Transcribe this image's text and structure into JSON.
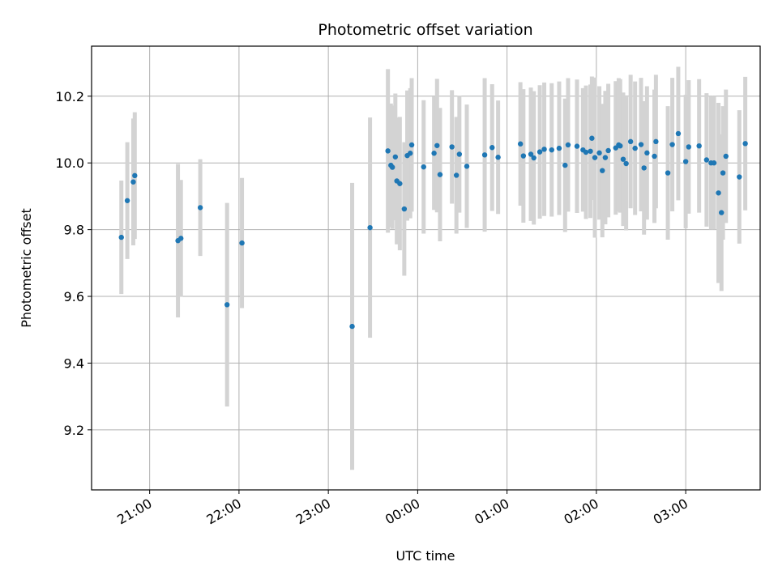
{
  "chart_data": {
    "type": "scatter",
    "title": "Photometric offset variation",
    "xlabel": "UTC time",
    "ylabel": "Photometric offset",
    "grid": true,
    "x_is_time": true,
    "xlim": [
      "20:21",
      "03:50"
    ],
    "ylim": [
      9.02,
      10.35
    ],
    "xticks": [
      "21:00",
      "22:00",
      "23:00",
      "00:00",
      "01:00",
      "02:00",
      "03:00"
    ],
    "yticks": [
      "9.2",
      "9.4",
      "9.6",
      "9.8",
      "10.0",
      "10.2"
    ],
    "point_color": "#1f77b4",
    "errorbar_color": "#d3d3d3",
    "series": [
      {
        "x": [
          "20:41",
          "20:45",
          "20:49",
          "20:50",
          "21:19",
          "21:21",
          "21:34",
          "21:52",
          "22:02",
          "23:16",
          "23:28",
          "23:40",
          "23:42",
          "23:43",
          "23:45",
          "23:46",
          "23:48",
          "23:51",
          "23:53",
          "23:55",
          "23:56",
          "24:04",
          "24:11",
          "24:13",
          "24:15",
          "24:23",
          "24:26",
          "24:28",
          "24:33",
          "24:45",
          "24:50",
          "24:54",
          "25:09",
          "25:11",
          "25:16",
          "25:18",
          "25:22",
          "25:25",
          "25:30",
          "25:35",
          "25:39",
          "25:41",
          "25:47",
          "25:51",
          "25:53",
          "25:56",
          "25:57",
          "25:59",
          "26:02",
          "26:04",
          "26:06",
          "26:08",
          "26:13",
          "26:15",
          "26:16",
          "26:18",
          "26:20",
          "26:23",
          "26:26",
          "26:30",
          "26:32",
          "26:34",
          "26:39",
          "26:40",
          "26:48",
          "26:51",
          "26:55",
          "27:00",
          "27:02",
          "27:09",
          "27:14",
          "27:17",
          "27:19",
          "27:22",
          "27:24",
          "27:25",
          "27:27",
          "27:36",
          "27:40"
        ],
        "y": [
          9.777,
          9.887,
          9.943,
          9.962,
          9.767,
          9.774,
          9.866,
          9.575,
          9.76,
          9.51,
          9.806,
          10.036,
          9.993,
          9.987,
          10.018,
          9.946,
          9.938,
          9.862,
          10.022,
          10.029,
          10.054,
          9.988,
          10.029,
          10.052,
          9.965,
          10.048,
          9.963,
          10.026,
          9.99,
          10.024,
          10.046,
          10.017,
          10.057,
          10.021,
          10.026,
          10.015,
          10.033,
          10.041,
          10.039,
          10.044,
          9.993,
          10.054,
          10.05,
          10.039,
          10.032,
          10.035,
          10.074,
          10.016,
          10.03,
          9.977,
          10.016,
          10.037,
          10.045,
          10.054,
          10.051,
          10.011,
          9.998,
          10.064,
          10.044,
          10.055,
          9.985,
          10.03,
          10.02,
          10.064,
          9.97,
          10.055,
          10.088,
          10.004,
          10.048,
          10.051,
          10.009,
          10.0,
          10.0,
          9.91,
          9.851,
          9.97,
          10.02,
          9.958,
          10.058
        ],
        "yerr": [
          0.17,
          0.175,
          0.19,
          0.19,
          0.23,
          0.175,
          0.145,
          0.305,
          0.195,
          0.43,
          0.33,
          0.245,
          0.185,
          0.185,
          0.19,
          0.19,
          0.2,
          0.2,
          0.195,
          0.195,
          0.2,
          0.2,
          0.17,
          0.2,
          0.2,
          0.17,
          0.175,
          0.175,
          0.185,
          0.23,
          0.19,
          0.17,
          0.185,
          0.2,
          0.2,
          0.2,
          0.2,
          0.2,
          0.2,
          0.2,
          0.2,
          0.2,
          0.2,
          0.185,
          0.2,
          0.2,
          0.185,
          0.24,
          0.2,
          0.2,
          0.2,
          0.2,
          0.2,
          0.2,
          0.2,
          0.2,
          0.2,
          0.2,
          0.2,
          0.2,
          0.2,
          0.2,
          0.2,
          0.2,
          0.2,
          0.2,
          0.2,
          0.2,
          0.2,
          0.2,
          0.2,
          0.2,
          0.2,
          0.27,
          0.235,
          0.2,
          0.2,
          0.2,
          0.2
        ]
      }
    ]
  }
}
